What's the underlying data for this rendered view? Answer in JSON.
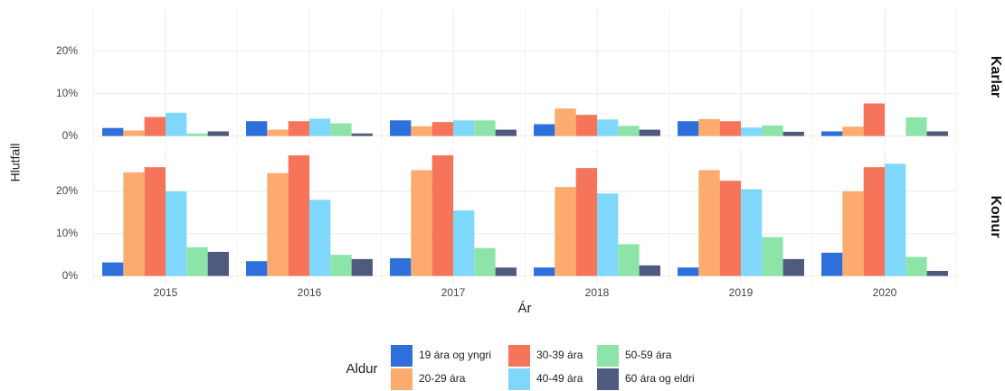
{
  "chart_data": {
    "type": "bar",
    "x_label": "Ár",
    "y_label": "Hlutfall",
    "legend_title": "Aldur",
    "legend": "bottom",
    "grid": true,
    "facets": [
      "Karlar",
      "Konur"
    ],
    "categories": [
      "2015",
      "2016",
      "2017",
      "2018",
      "2019",
      "2020"
    ],
    "ylim": [
      -2,
      30
    ],
    "yticks": [
      {
        "value": 0,
        "label": "0%"
      },
      {
        "value": 10,
        "label": "10%"
      },
      {
        "value": 20,
        "label": "20%"
      }
    ],
    "series": [
      {
        "name": "19 ára og yngri",
        "color": "#2e6fdb",
        "values": [
          [
            1.9,
            3.5,
            3.7,
            2.8,
            3.5,
            1.1
          ],
          [
            3.2,
            3.5,
            4.2,
            2.0,
            2.0,
            5.5
          ]
        ]
      },
      {
        "name": "20-29 ára",
        "color": "#fbab6d",
        "values": [
          [
            1.3,
            1.5,
            2.3,
            6.5,
            4.0,
            2.2
          ],
          [
            24.5,
            24.3,
            25.0,
            21.0,
            25.0,
            20.0
          ]
        ]
      },
      {
        "name": "30-39 ára",
        "color": "#f6755a",
        "values": [
          [
            4.5,
            3.5,
            3.3,
            5.0,
            3.5,
            7.7
          ],
          [
            25.7,
            28.5,
            28.5,
            25.5,
            22.5,
            25.7
          ]
        ]
      },
      {
        "name": "40-49 ára",
        "color": "#7fd8fb",
        "values": [
          [
            5.5,
            4.1,
            3.7,
            3.9,
            2.0,
            0
          ],
          [
            20.0,
            18.0,
            15.5,
            19.5,
            20.5,
            26.5
          ]
        ]
      },
      {
        "name": "50-59 ára",
        "color": "#8de4a9",
        "values": [
          [
            0.6,
            3.0,
            3.7,
            2.4,
            2.5,
            4.4
          ],
          [
            6.8,
            5.0,
            6.6,
            7.5,
            9.2,
            4.5
          ]
        ]
      },
      {
        "name": "60 ára og eldri",
        "color": "#4f5a7f",
        "values": [
          [
            1.1,
            0.6,
            1.5,
            1.5,
            1.0,
            1.1
          ],
          [
            5.7,
            4.0,
            2.0,
            2.5,
            4.0,
            1.2
          ]
        ]
      }
    ]
  }
}
